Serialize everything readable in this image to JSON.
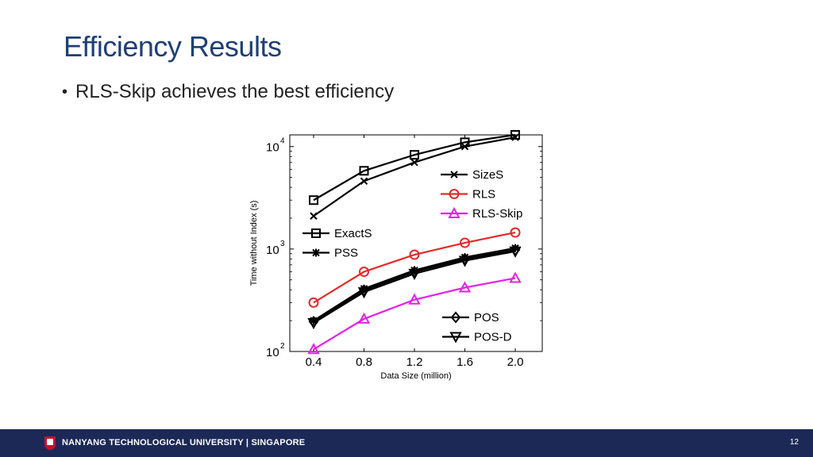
{
  "slide": {
    "title": "Efficiency Results",
    "bullet": "RLS-Skip achieves the best efficiency",
    "footer_org": "NANYANG TECHNOLOGICAL UNIVERSITY | SINGAPORE",
    "page_number": "12"
  },
  "chart_data": {
    "type": "line",
    "xlabel": "Data Size (million)",
    "ylabel": "Time without Index (s)",
    "x": [
      0.4,
      0.8,
      1.2,
      1.6,
      2.0
    ],
    "x_tick_labels": [
      "0.4",
      "0.8",
      "1.2",
      "1.6",
      "2.0"
    ],
    "y_scale": "log",
    "ylim": [
      100,
      13000
    ],
    "xlim": [
      0.4,
      2.0
    ],
    "y_ticks": [
      {
        "value": 100,
        "base": "10",
        "exp": "2"
      },
      {
        "value": 1000,
        "base": "10",
        "exp": "3"
      },
      {
        "value": 10000,
        "base": "10",
        "exp": "4"
      }
    ],
    "grid": false,
    "series": [
      {
        "name": "ExactS",
        "marker": "square",
        "color": "#000000",
        "values": [
          3000,
          5800,
          8300,
          11000,
          13000
        ]
      },
      {
        "name": "SizeS",
        "marker": "x",
        "color": "#000000",
        "values": [
          2100,
          4600,
          7000,
          10000,
          12300
        ]
      },
      {
        "name": "PSS",
        "marker": "star",
        "color": "#000000",
        "values": [
          200,
          410,
          620,
          830,
          1020
        ]
      },
      {
        "name": "POS",
        "marker": "diamond",
        "color": "#000000",
        "values": [
          195,
          395,
          600,
          800,
          980
        ]
      },
      {
        "name": "POS-D",
        "marker": "triangle-down",
        "color": "#000000",
        "values": [
          190,
          380,
          575,
          770,
          950
        ]
      },
      {
        "name": "RLS",
        "marker": "circle",
        "color": "#e52a2a",
        "values": [
          300,
          600,
          880,
          1150,
          1450
        ]
      },
      {
        "name": "RLS-Skip",
        "marker": "triangle-up",
        "color": "#e622e6",
        "values": [
          105,
          208,
          320,
          420,
          520
        ]
      }
    ],
    "legends": [
      {
        "position": "top-right",
        "entries": [
          "SizeS",
          "RLS",
          "RLS-Skip"
        ]
      },
      {
        "position": "middle-left",
        "entries": [
          "ExactS",
          "PSS"
        ]
      },
      {
        "position": "bottom-right",
        "entries": [
          "POS",
          "POS-D"
        ]
      }
    ]
  }
}
